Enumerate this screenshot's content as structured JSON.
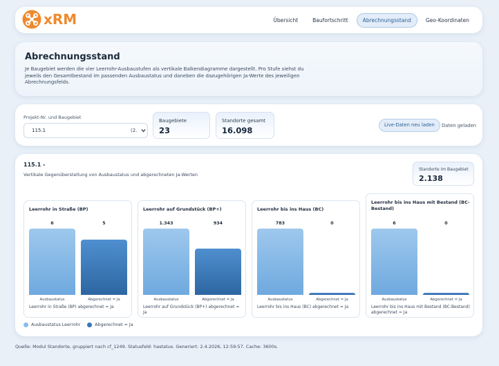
{
  "app": {
    "logo_text": "xRM",
    "brand_color": "#ee8a2e",
    "accent_color": "#2c5f94"
  },
  "nav": {
    "items": [
      {
        "label": "Übersicht",
        "active": false
      },
      {
        "label": "Baufortschritt",
        "active": false
      },
      {
        "label": "Abrechnungsstand",
        "active": true
      },
      {
        "label": "Geo-Koordinaten",
        "active": false
      }
    ]
  },
  "header": {
    "title": "Abrechnungsstand",
    "description": "Je Baugebiet werden die vier Leerrohr-Ausbaustufen als vertikale Balkendiagramme dargestellt. Pro Stufe siehst du jeweils den Gesamtbestand im passenden Ausbaustatus und daneben die dazugehörigen Ja-Werte des jeweiligen Abrechnungsfelds."
  },
  "controls": {
    "project_label": "Projekt-Nr. und Baugebiet",
    "project_value": "115.1",
    "project_value_suffix": "(2.",
    "stat_baugebiete_label": "Baugebiete",
    "stat_baugebiete_value": "23",
    "stat_standorte_label": "Standorte gesamt",
    "stat_standorte_value": "16.098",
    "reload_label": "Live-Daten neu laden",
    "status_text": "Daten geladen"
  },
  "main": {
    "title": "115.1 -",
    "subtitle": "Vertikale Gegenüberstellung von Ausbaustatus und abgerechneten Ja-Werten",
    "standorte_label": "Standorte im Baugebiet",
    "standorte_value": "2.138",
    "colors": {
      "ausbaustatus": "#8bbce8",
      "abgerechnet": "#3a76b6"
    },
    "axis_left": "Ausbaustatus",
    "axis_right": "Abgerechnet = Ja",
    "panels": [
      {
        "title": "Leerrohr in Straße (BP)",
        "ausbaustatus": 6,
        "ausbaustatus_label": "6",
        "abgerechnet": 5,
        "abgerechnet_label": "5",
        "footer": "Leerrohr in Straße (BP) abgerechnet = Ja"
      },
      {
        "title": "Leerrohr auf Grundstück (BP+)",
        "ausbaustatus": 1343,
        "ausbaustatus_label": "1.343",
        "abgerechnet": 934,
        "abgerechnet_label": "934",
        "footer": "Leerrohr auf Grundstück (BP+) abgerechnet = Ja"
      },
      {
        "title": "Leerrohr bis ins Haus (BC)",
        "ausbaustatus": 783,
        "ausbaustatus_label": "783",
        "abgerechnet": 0,
        "abgerechnet_label": "0",
        "footer": "Leerrohr bis ins Haus (BC) abgerechnet = Ja"
      },
      {
        "title": "Leerrohr bis ins Haus mit Bestand (BC-Bestand)",
        "ausbaustatus": 6,
        "ausbaustatus_label": "6",
        "abgerechnet": 0,
        "abgerechnet_label": "0",
        "footer": "Leerrohr bis ins Haus mit Bestand (BC-Bestand) abgerechnet = Ja"
      }
    ],
    "legend": {
      "ausbaustatus": "Ausbaustatus Leerrohr",
      "abgerechnet": "Abgerechnet = Ja"
    }
  },
  "footer": {
    "text": "Quelle: Modul Standorte, gruppiert nach cf_1249. Statusfeld: hastatus. Generiert: 2.4.2026, 12:59:57. Cache: 3600s."
  }
}
